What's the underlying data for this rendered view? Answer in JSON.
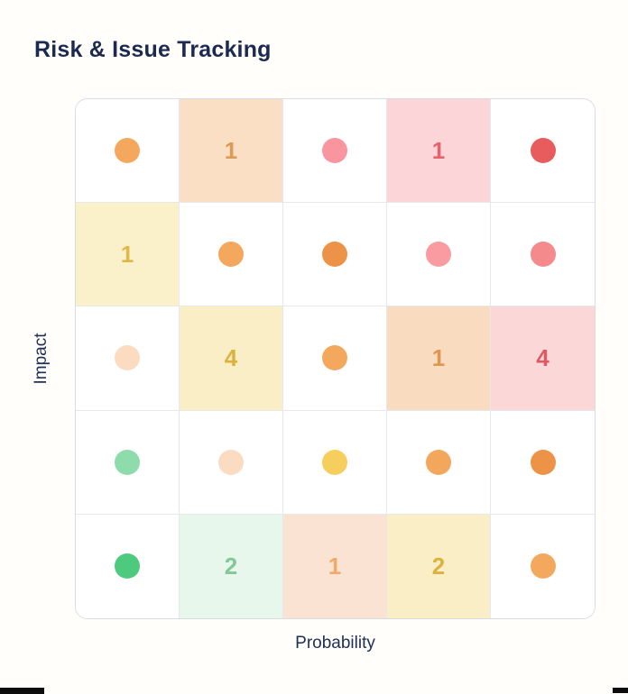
{
  "title": "Risk & Issue Tracking",
  "colors": {
    "heading": "#1b2a4e",
    "axis_label": "#1e2f55",
    "grid_border": "#d9dde3",
    "cell_divider": "#e5e8ec",
    "cell_bg_default": "#ffffff",
    "cutoff_bar": "#0d0d0d"
  },
  "chart_data": {
    "type": "heatmap",
    "title": "Risk & Issue Tracking",
    "xlabel": "Probability",
    "ylabel": "Impact",
    "x_tick_labels": [],
    "y_tick_labels": [],
    "grid": {
      "rows": 5,
      "cols": 5
    },
    "legend_position": "none",
    "cell_semantics": "dot = single risk item marker colored by severity; number = count of risk items in highlighted cell",
    "cells": [
      [
        {
          "type": "dot",
          "dot_color": "#f4a85e",
          "bg": "#ffffff"
        },
        {
          "type": "count",
          "value": "1",
          "bg": "#fadfc5",
          "text_color": "#db9a55"
        },
        {
          "type": "dot",
          "dot_color": "#f8959e",
          "bg": "#ffffff"
        },
        {
          "type": "count",
          "value": "1",
          "bg": "#fbd5d7",
          "text_color": "#e4636e"
        },
        {
          "type": "dot",
          "dot_color": "#e85c5e",
          "bg": "#ffffff"
        }
      ],
      [
        {
          "type": "count",
          "value": "1",
          "bg": "#faf0ca",
          "text_color": "#dfb84b"
        },
        {
          "type": "dot",
          "dot_color": "#f4a85e",
          "bg": "#ffffff"
        },
        {
          "type": "dot",
          "dot_color": "#ed9347",
          "bg": "#ffffff"
        },
        {
          "type": "dot",
          "dot_color": "#f99ba1",
          "bg": "#ffffff"
        },
        {
          "type": "dot",
          "dot_color": "#f48a8c",
          "bg": "#ffffff"
        }
      ],
      [
        {
          "type": "dot",
          "dot_color": "#fbdcc1",
          "bg": "#ffffff"
        },
        {
          "type": "count",
          "value": "4",
          "bg": "#faeec6",
          "text_color": "#dcb23e"
        },
        {
          "type": "dot",
          "dot_color": "#f4a85e",
          "bg": "#ffffff"
        },
        {
          "type": "count",
          "value": "1",
          "bg": "#f9dbbf",
          "text_color": "#dd974f"
        },
        {
          "type": "count",
          "value": "4",
          "bg": "#fcd7d8",
          "text_color": "#dc5a64"
        }
      ],
      [
        {
          "type": "dot",
          "dot_color": "#8edcab",
          "bg": "#ffffff"
        },
        {
          "type": "dot",
          "dot_color": "#fbdcc1",
          "bg": "#ffffff"
        },
        {
          "type": "dot",
          "dot_color": "#f6ce5d",
          "bg": "#ffffff"
        },
        {
          "type": "dot",
          "dot_color": "#f3a75c",
          "bg": "#ffffff"
        },
        {
          "type": "dot",
          "dot_color": "#ed9347",
          "bg": "#ffffff"
        }
      ],
      [
        {
          "type": "dot",
          "dot_color": "#4eca7e",
          "bg": "#ffffff"
        },
        {
          "type": "count",
          "value": "2",
          "bg": "#e7f7ec",
          "text_color": "#85c795"
        },
        {
          "type": "count",
          "value": "1",
          "bg": "#fbe3d4",
          "text_color": "#f0a968"
        },
        {
          "type": "count",
          "value": "2",
          "bg": "#faeec6",
          "text_color": "#dcb23e"
        },
        {
          "type": "dot",
          "dot_color": "#f4a85e",
          "bg": "#ffffff"
        }
      ]
    ]
  }
}
